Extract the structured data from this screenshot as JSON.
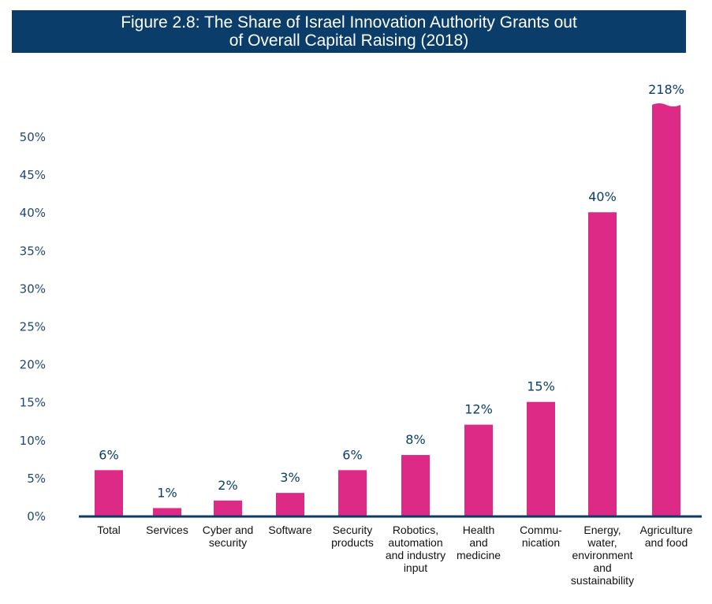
{
  "chart_data": {
    "type": "bar",
    "title_lines": [
      "Figure 2.8: The Share of Israel Innovation Authority Grants out",
      "of Overall Capital Raising (2018)"
    ],
    "xlabel": "",
    "ylabel": "",
    "ylim": [
      0,
      50
    ],
    "yticks": [
      0,
      5,
      10,
      15,
      20,
      25,
      30,
      35,
      40,
      45,
      50
    ],
    "ytick_labels": [
      "0%",
      "5%",
      "10%",
      "15%",
      "20%",
      "25%",
      "30%",
      "35%",
      "40%",
      "45%",
      "50%"
    ],
    "grid": false,
    "legend": "none",
    "categories": [
      [
        "Total"
      ],
      [
        "Services"
      ],
      [
        "Cyber and",
        "security"
      ],
      [
        "Software"
      ],
      [
        "Security",
        "products"
      ],
      [
        "Robotics,",
        "automation",
        "and industry",
        "input"
      ],
      [
        "Health",
        "and",
        "medicine"
      ],
      [
        "Commu-",
        "nication"
      ],
      [
        "Energy,",
        "water,",
        "environment",
        "and",
        "sustainability"
      ],
      [
        "Agriculture",
        "and food"
      ]
    ],
    "values": [
      6,
      1,
      2,
      3,
      6,
      8,
      12,
      15,
      40,
      218
    ],
    "data_labels": [
      "6%",
      "1%",
      "2%",
      "3%",
      "6%",
      "8%",
      "12%",
      "15%",
      "40%",
      "218%"
    ],
    "truncated": [
      false,
      false,
      false,
      false,
      false,
      false,
      false,
      false,
      false,
      true
    ],
    "colors": {
      "bar": "#dd2a86",
      "axis": "#0b3d6b",
      "label": "#0b3d6b",
      "title_bg": "#0b3d6b"
    }
  }
}
